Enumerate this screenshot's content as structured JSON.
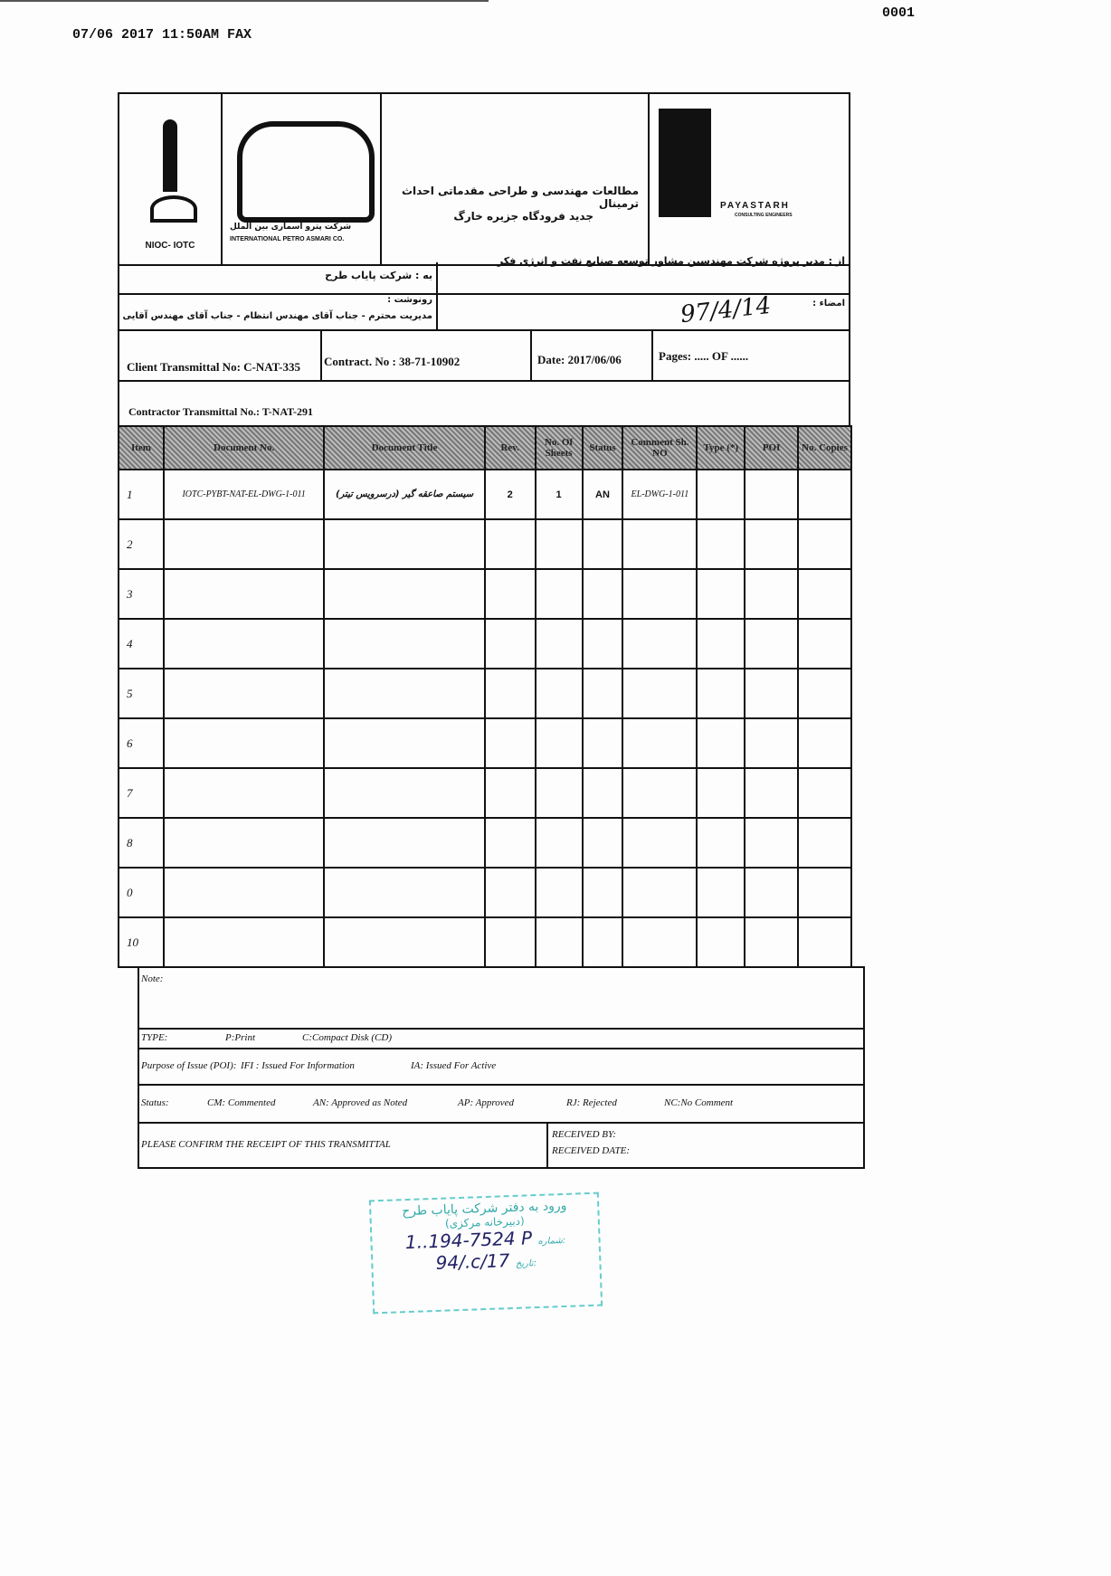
{
  "fax_header": "07/06 2017 11:50AM FAX",
  "page_number": "0001",
  "logos": {
    "nioc": "NIOC- IOTC",
    "ipac_fa": "شرکت پترو اسماری بین الملل",
    "ipac_en": "INTERNATIONAL PETRO ASMARI CO.",
    "payastarh": "PAYASTARH",
    "payastarh_sub": "CONSULTING ENGINEERS"
  },
  "project_title_line1": "مطالعات مهندسی و طراحی مقدماتی احداث ترمینال",
  "project_title_line2": "جدید فرودگاه جزیره خارگ",
  "from": "از : مدیر پروژه شرکت مهندسین مشاور توسعه صنایع نفت و انرژی فکر",
  "to": "به : شرکت پایاب طرح",
  "signature_label": "امضاء :",
  "cc_label": "رونوشت :",
  "cc_text": "مدیریت محترم - جناب آقای مهندس انتظام - جناب آقای مهندس آقایی",
  "handwritten_date": "97/4/14",
  "client_transmittal": "Client Transmittal No: C-NAT-335",
  "contract": "Contract. No : 38-71-10902",
  "date": "Date: 2017/06/06",
  "pages": "Pages: ..... OF ......",
  "contractor_transmittal": "Contractor Transmittal No.: T-NAT-291",
  "columns": [
    "Item",
    "Document No.",
    "Document Title",
    "Rev.",
    "No. Of Sheets",
    "Status",
    "Comment Sh. NO",
    "Type (*)",
    "POI",
    "No. Copies"
  ],
  "rows": [
    [
      "1",
      "IOTC-PYBT-NAT-EL-DWG-1-011",
      "سیستم صاعقه گیر (درسرویس تیتر)",
      "2",
      "1",
      "AN",
      "EL-DWG-1-011",
      "",
      "",
      ""
    ],
    [
      "2",
      "",
      "",
      "",
      "",
      "",
      "",
      "",
      "",
      ""
    ],
    [
      "3",
      "",
      "",
      "",
      "",
      "",
      "",
      "",
      "",
      ""
    ],
    [
      "4",
      "",
      "",
      "",
      "",
      "",
      "",
      "",
      "",
      ""
    ],
    [
      "5",
      "",
      "",
      "",
      "",
      "",
      "",
      "",
      "",
      ""
    ],
    [
      "6",
      "",
      "",
      "",
      "",
      "",
      "",
      "",
      "",
      ""
    ],
    [
      "7",
      "",
      "",
      "",
      "",
      "",
      "",
      "",
      "",
      ""
    ],
    [
      "8",
      "",
      "",
      "",
      "",
      "",
      "",
      "",
      "",
      ""
    ],
    [
      "0",
      "",
      "",
      "",
      "",
      "",
      "",
      "",
      "",
      ""
    ],
    [
      "10",
      "",
      "",
      "",
      "",
      "",
      "",
      "",
      "",
      ""
    ]
  ],
  "note_label": "Note:",
  "type": {
    "label": "TYPE:",
    "p": "P:Print",
    "c": "C:Compact Disk (CD)"
  },
  "poi": {
    "label": "Purpose of Issue (POI):",
    "ifi": "IFI : Issued For Information",
    "ia": "IA: Issued For Active"
  },
  "status": {
    "label": "Status:",
    "cm": "CM: Commented",
    "an": "AN: Approved as Noted",
    "ap": "AP: Approved",
    "rj": "RJ: Rejected",
    "nc": "NC:No Comment"
  },
  "confirm": "PLEASE CONFIRM THE RECEIPT OF THIS TRANSMITTAL",
  "received_by": "RECEIVED BY:",
  "received_date": "RECEIVED DATE:",
  "stamp": {
    "line1": "ورود به دفتر شرکت پایاب طرح",
    "line2": "(دبیرخانه مرکزی)",
    "number_label": "شماره:",
    "number": "1..194-7524 P",
    "date_label": "تاریخ:",
    "date": "94/.c/17"
  }
}
